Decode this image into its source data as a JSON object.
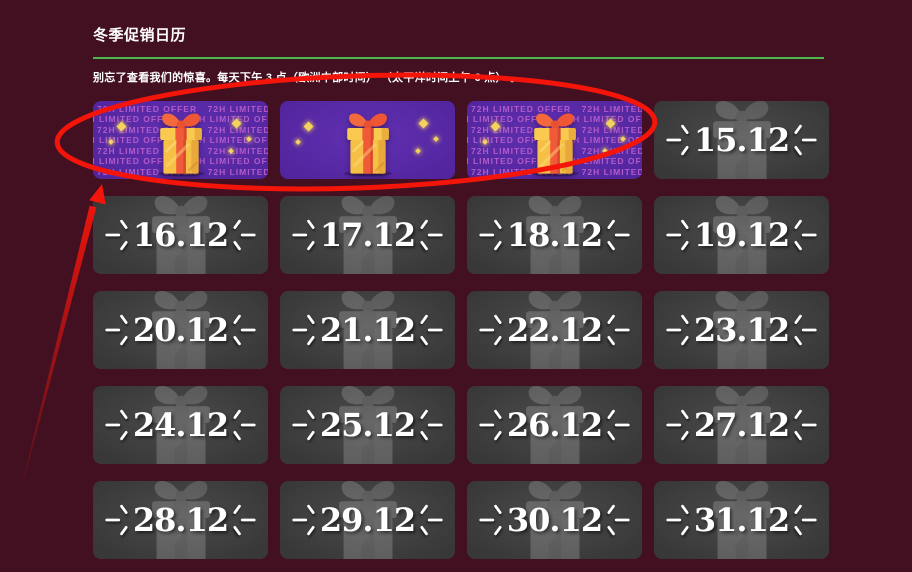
{
  "header": {
    "title": "冬季促销日历",
    "subtitle": "别忘了查看我们的惊喜。每天下午 3 点（欧洲中部时间） （太平洋时间上午 6 点） 。"
  },
  "cards": [
    {
      "kind": "gift",
      "banner_text": "72H LIMITED OFFER"
    },
    {
      "kind": "gift",
      "banner_text": ""
    },
    {
      "kind": "gift",
      "banner_text": "72H LIMITED OFFER"
    },
    {
      "kind": "date",
      "label": "15.12"
    },
    {
      "kind": "date",
      "label": "16.12"
    },
    {
      "kind": "date",
      "label": "17.12"
    },
    {
      "kind": "date",
      "label": "18.12"
    },
    {
      "kind": "date",
      "label": "19.12"
    },
    {
      "kind": "date",
      "label": "20.12"
    },
    {
      "kind": "date",
      "label": "21.12"
    },
    {
      "kind": "date",
      "label": "22.12"
    },
    {
      "kind": "date",
      "label": "23.12"
    },
    {
      "kind": "date",
      "label": "24.12"
    },
    {
      "kind": "date",
      "label": "25.12"
    },
    {
      "kind": "date",
      "label": "26.12"
    },
    {
      "kind": "date",
      "label": "27.12"
    },
    {
      "kind": "date",
      "label": "28.12"
    },
    {
      "kind": "date",
      "label": "29.12"
    },
    {
      "kind": "date",
      "label": "30.12"
    },
    {
      "kind": "date",
      "label": "31.12"
    }
  ],
  "annotation": {
    "description": "hand-drawn red ellipse circling the three gift cards with an arrow pointing up from bottom-left"
  },
  "colors": {
    "page-bg": "#431021",
    "card-gray-1": "#4b4b4b",
    "card-gray-2": "#383838",
    "purple-1": "#6130b2",
    "purple-2": "#50249b",
    "banner-text": "#c263cf",
    "divider-green": "#4db84e",
    "annotation-red": "#f3150a",
    "sparkle": "#f3d35e",
    "gift-yellow": "#f7c64b",
    "gift-orange": "#ef5a38"
  }
}
